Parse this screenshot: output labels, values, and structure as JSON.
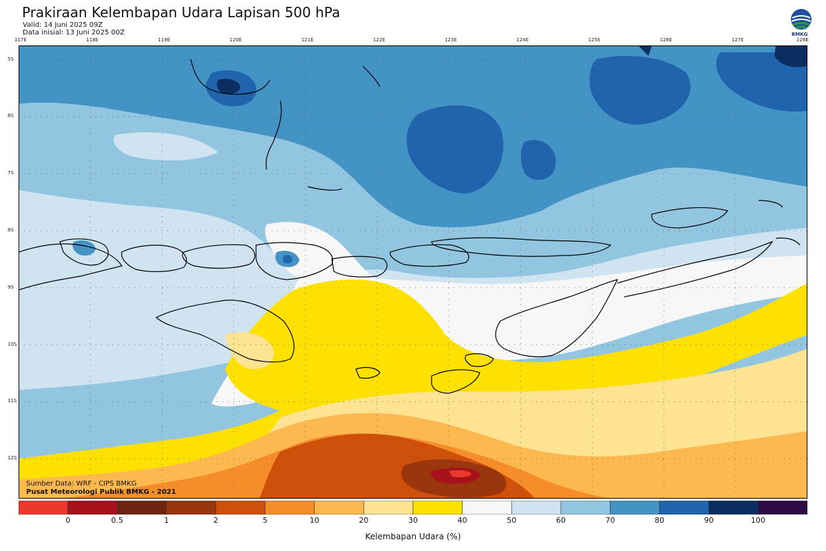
{
  "header": {
    "title": "Prakiraan Kelembapan Udara Lapisan 500 hPa",
    "valid": "Valid: 14 Juni 2025 09Z",
    "init": "Data inisial: 13 Juni 2025 00Z",
    "logo_text": "BMKG"
  },
  "map": {
    "lon_labels": [
      "117E",
      "118E",
      "119E",
      "120E",
      "121E",
      "122E",
      "123E",
      "124E",
      "125E",
      "126E",
      "127E",
      "128E"
    ],
    "lat_labels": [
      "5S",
      "6S",
      "7S",
      "8S",
      "9S",
      "10S",
      "11S",
      "12S"
    ],
    "lon_range": [
      117,
      128
    ],
    "lat_range": [
      -4.75,
      -12.7
    ],
    "grid": "dotted"
  },
  "credits": {
    "source": "Sumber Data: WRF - CIPS BMKG",
    "org": "Pusat Meteorologi Publik BMKG - 2021"
  },
  "legend": {
    "title": "Kelembapan Udara (%)",
    "labels": [
      "0",
      "0.5",
      "1",
      "2",
      "5",
      "10",
      "20",
      "30",
      "40",
      "50",
      "60",
      "70",
      "80",
      "90",
      "100"
    ],
    "colors": [
      "#e8392b",
      "#a7111a",
      "#6e2410",
      "#9a360e",
      "#cf500a",
      "#f58d2a",
      "#fdb94f",
      "#fee393",
      "#fee100",
      "#f7f7f7",
      "#cfe3f0",
      "#92c5e0",
      "#4393c4",
      "#2064ad",
      "#0a2e5f",
      "#2b0a45"
    ]
  }
}
